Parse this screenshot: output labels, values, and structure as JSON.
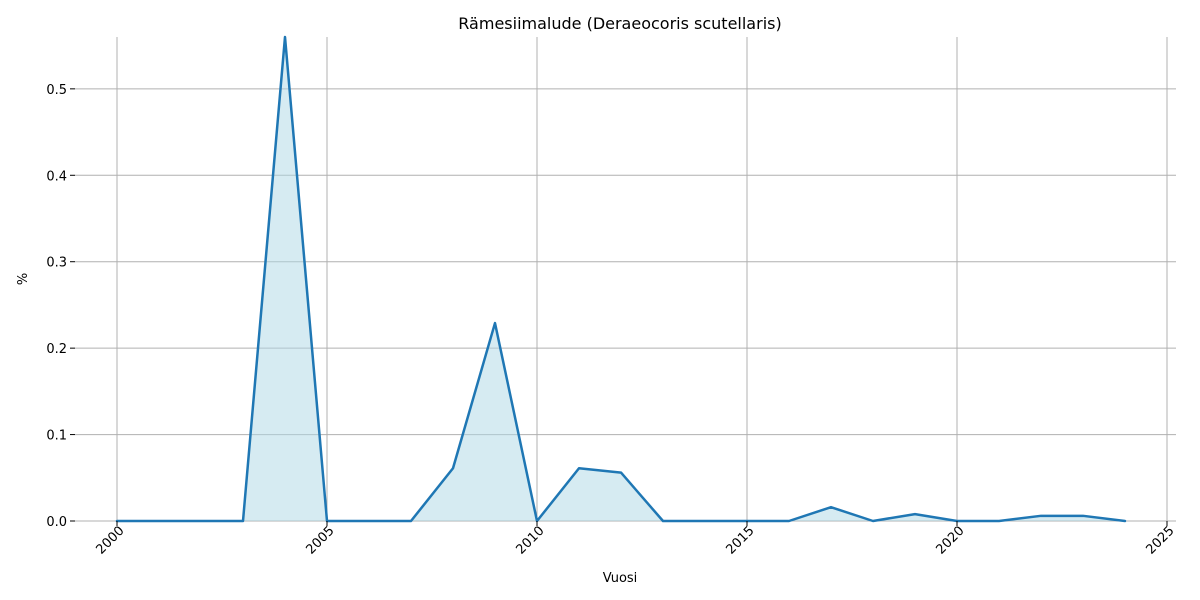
{
  "chart_data": {
    "type": "area",
    "title": "Rämesiimalude (Deraeocoris scutellaris)",
    "xlabel": "Vuosi",
    "ylabel": "%",
    "xlim": [
      2000,
      2025
    ],
    "ylim": [
      0,
      0.56
    ],
    "xticks": [
      "2000",
      "2005",
      "2010",
      "2015",
      "2020",
      "2025"
    ],
    "yticks": [
      "0.0",
      "0.1",
      "0.2",
      "0.3",
      "0.4",
      "0.5"
    ],
    "grid": true,
    "series": [
      {
        "x": [
          2000,
          2001,
          2002,
          2003,
          2004,
          2005,
          2006,
          2007,
          2008,
          2009,
          2010,
          2011,
          2012,
          2013,
          2014,
          2015,
          2016,
          2017,
          2018,
          2019,
          2020,
          2021,
          2022,
          2023,
          2024
        ],
        "values": [
          0,
          0,
          0,
          0,
          0.56,
          0,
          0,
          0,
          0.061,
          0.229,
          0,
          0.061,
          0.056,
          0,
          0,
          0,
          0,
          0.016,
          0,
          0.008,
          0,
          0,
          0.006,
          0.006,
          0
        ]
      }
    ],
    "colors": {
      "line": "#1f77b4",
      "fill": "#add8e6",
      "grid": "#b0b0b0"
    }
  }
}
